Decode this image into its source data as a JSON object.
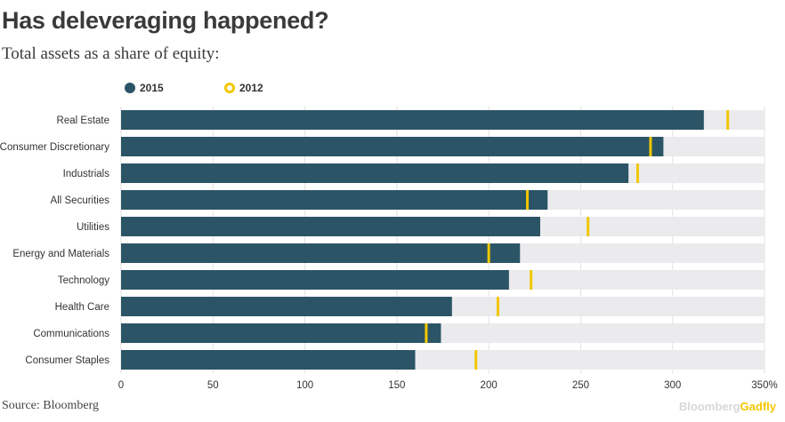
{
  "header": {
    "title": "Has deleveraging happened?",
    "subtitle": "Total assets as a share of equity:"
  },
  "legend": [
    {
      "label": "2015",
      "color": "#2b5566",
      "style": "filled"
    },
    {
      "label": "2012",
      "color": "#f2c700",
      "style": "ring"
    }
  ],
  "footer": {
    "source": "Source: Bloomberg",
    "brand_main": "Bloomberg",
    "brand_accent": "Gadfly"
  },
  "colors": {
    "bar": "#2b5566",
    "marker": "#f2c700",
    "track": "#ebebee"
  },
  "chart_data": {
    "type": "bar",
    "orientation": "horizontal",
    "categories": [
      "Real Estate",
      "Consumer Discretionary",
      "Industrials",
      "All Securities",
      "Utilities",
      "Energy and Materials",
      "Technology",
      "Health Care",
      "Communications",
      "Consumer Staples"
    ],
    "series": [
      {
        "name": "2015",
        "values": [
          317,
          295,
          276,
          232,
          228,
          217,
          211,
          180,
          174,
          160
        ]
      },
      {
        "name": "2012",
        "values": [
          330,
          288,
          281,
          221,
          254,
          200,
          223,
          205,
          166,
          193
        ]
      }
    ],
    "xlim": [
      0,
      350
    ],
    "xticks": [
      0,
      50,
      100,
      150,
      200,
      250,
      300,
      350
    ],
    "xtick_labels": [
      "0",
      "50",
      "100",
      "150",
      "200",
      "250",
      "300",
      "350%"
    ],
    "legend_position": "top-left",
    "grid": true
  }
}
